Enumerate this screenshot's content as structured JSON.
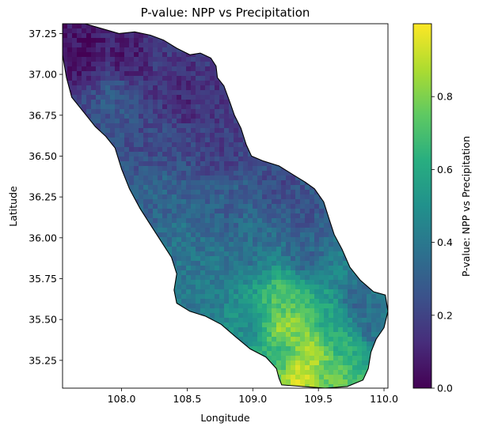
{
  "chart_data": {
    "type": "heatmap",
    "title": "P-value: NPP vs Precipitation",
    "xlabel": "Longitude",
    "ylabel": "Latitude",
    "xlim": [
      107.55,
      110.03
    ],
    "ylim": [
      35.08,
      37.31
    ],
    "xticks": [
      108.0,
      108.5,
      109.0,
      109.5,
      110.0
    ],
    "xtick_labels": [
      "108.0",
      "108.5",
      "109.0",
      "109.5",
      "110.0"
    ],
    "yticks": [
      35.25,
      35.5,
      35.75,
      36.0,
      36.25,
      36.5,
      36.75,
      37.0,
      37.25
    ],
    "ytick_labels": [
      "35.25",
      "35.50",
      "35.75",
      "36.00",
      "36.25",
      "36.50",
      "36.75",
      "37.00",
      "37.25"
    ],
    "grid": false,
    "colormap": "viridis",
    "colorbar": {
      "label": "P-value: NPP vs Precipitation",
      "range": [
        0.0,
        1.0
      ],
      "ticks": [
        0.0,
        0.2,
        0.4,
        0.6,
        0.8
      ],
      "tick_labels": [
        "0.0",
        "0.2",
        "0.4",
        "0.6",
        "0.8"
      ]
    },
    "region_boundary": [
      [
        107.55,
        37.32
      ],
      [
        107.72,
        37.31
      ],
      [
        107.85,
        37.28
      ],
      [
        107.98,
        37.25
      ],
      [
        108.1,
        37.26
      ],
      [
        108.22,
        37.24
      ],
      [
        108.32,
        37.21
      ],
      [
        108.42,
        37.16
      ],
      [
        108.52,
        37.12
      ],
      [
        108.6,
        37.13
      ],
      [
        108.68,
        37.1
      ],
      [
        108.72,
        37.05
      ],
      [
        108.73,
        36.98
      ],
      [
        108.78,
        36.93
      ],
      [
        108.83,
        36.82
      ],
      [
        108.86,
        36.75
      ],
      [
        108.91,
        36.67
      ],
      [
        108.95,
        36.57
      ],
      [
        108.99,
        36.5
      ],
      [
        109.08,
        36.47
      ],
      [
        109.2,
        36.44
      ],
      [
        109.32,
        36.38
      ],
      [
        109.4,
        36.34
      ],
      [
        109.47,
        36.3
      ],
      [
        109.54,
        36.22
      ],
      [
        109.58,
        36.12
      ],
      [
        109.62,
        36.02
      ],
      [
        109.68,
        35.93
      ],
      [
        109.74,
        35.82
      ],
      [
        109.82,
        35.74
      ],
      [
        109.92,
        35.67
      ],
      [
        110.01,
        35.65
      ],
      [
        110.03,
        35.55
      ],
      [
        110.0,
        35.45
      ],
      [
        109.94,
        35.38
      ],
      [
        109.9,
        35.3
      ],
      [
        109.88,
        35.2
      ],
      [
        109.84,
        35.13
      ],
      [
        109.72,
        35.09
      ],
      [
        109.55,
        35.08
      ],
      [
        109.38,
        35.09
      ],
      [
        109.22,
        35.1
      ],
      [
        109.2,
        35.14
      ],
      [
        109.18,
        35.2
      ],
      [
        109.1,
        35.27
      ],
      [
        108.98,
        35.32
      ],
      [
        108.86,
        35.4
      ],
      [
        108.76,
        35.47
      ],
      [
        108.64,
        35.52
      ],
      [
        108.52,
        35.55
      ],
      [
        108.42,
        35.6
      ],
      [
        108.4,
        35.68
      ],
      [
        108.42,
        35.78
      ],
      [
        108.38,
        35.88
      ],
      [
        108.3,
        35.98
      ],
      [
        108.22,
        36.08
      ],
      [
        108.14,
        36.18
      ],
      [
        108.06,
        36.3
      ],
      [
        108.0,
        36.42
      ],
      [
        107.95,
        36.55
      ],
      [
        107.88,
        36.62
      ],
      [
        107.8,
        36.68
      ],
      [
        107.72,
        36.76
      ],
      [
        107.62,
        36.86
      ],
      [
        107.58,
        36.98
      ],
      [
        107.55,
        37.12
      ]
    ],
    "value_field": [
      {
        "lon": 107.7,
        "lat": 37.15,
        "p": 0.05
      },
      {
        "lon": 108.05,
        "lat": 37.12,
        "p": 0.08
      },
      {
        "lon": 108.35,
        "lat": 37.05,
        "p": 0.16
      },
      {
        "lon": 107.95,
        "lat": 36.85,
        "p": 0.28
      },
      {
        "lon": 108.45,
        "lat": 36.85,
        "p": 0.12
      },
      {
        "lon": 108.7,
        "lat": 36.85,
        "p": 0.15
      },
      {
        "lon": 108.3,
        "lat": 36.6,
        "p": 0.22
      },
      {
        "lon": 108.75,
        "lat": 36.55,
        "p": 0.18
      },
      {
        "lon": 109.2,
        "lat": 36.35,
        "p": 0.22
      },
      {
        "lon": 108.3,
        "lat": 36.25,
        "p": 0.32
      },
      {
        "lon": 108.8,
        "lat": 36.2,
        "p": 0.3
      },
      {
        "lon": 109.4,
        "lat": 36.15,
        "p": 0.26
      },
      {
        "lon": 108.45,
        "lat": 35.95,
        "p": 0.38
      },
      {
        "lon": 108.95,
        "lat": 35.95,
        "p": 0.36
      },
      {
        "lon": 109.4,
        "lat": 35.9,
        "p": 0.32
      },
      {
        "lon": 108.6,
        "lat": 35.65,
        "p": 0.4
      },
      {
        "lon": 109.25,
        "lat": 35.62,
        "p": 0.72
      },
      {
        "lon": 109.8,
        "lat": 35.6,
        "p": 0.34
      },
      {
        "lon": 108.95,
        "lat": 35.45,
        "p": 0.48
      },
      {
        "lon": 109.25,
        "lat": 35.45,
        "p": 0.85
      },
      {
        "lon": 109.6,
        "lat": 35.45,
        "p": 0.6
      },
      {
        "lon": 109.9,
        "lat": 35.45,
        "p": 0.36
      },
      {
        "lon": 109.2,
        "lat": 35.3,
        "p": 0.65
      },
      {
        "lon": 109.45,
        "lat": 35.3,
        "p": 0.88
      },
      {
        "lon": 109.75,
        "lat": 35.3,
        "p": 0.62
      },
      {
        "lon": 109.35,
        "lat": 35.15,
        "p": 0.92
      },
      {
        "lon": 109.65,
        "lat": 35.15,
        "p": 0.75
      }
    ]
  }
}
